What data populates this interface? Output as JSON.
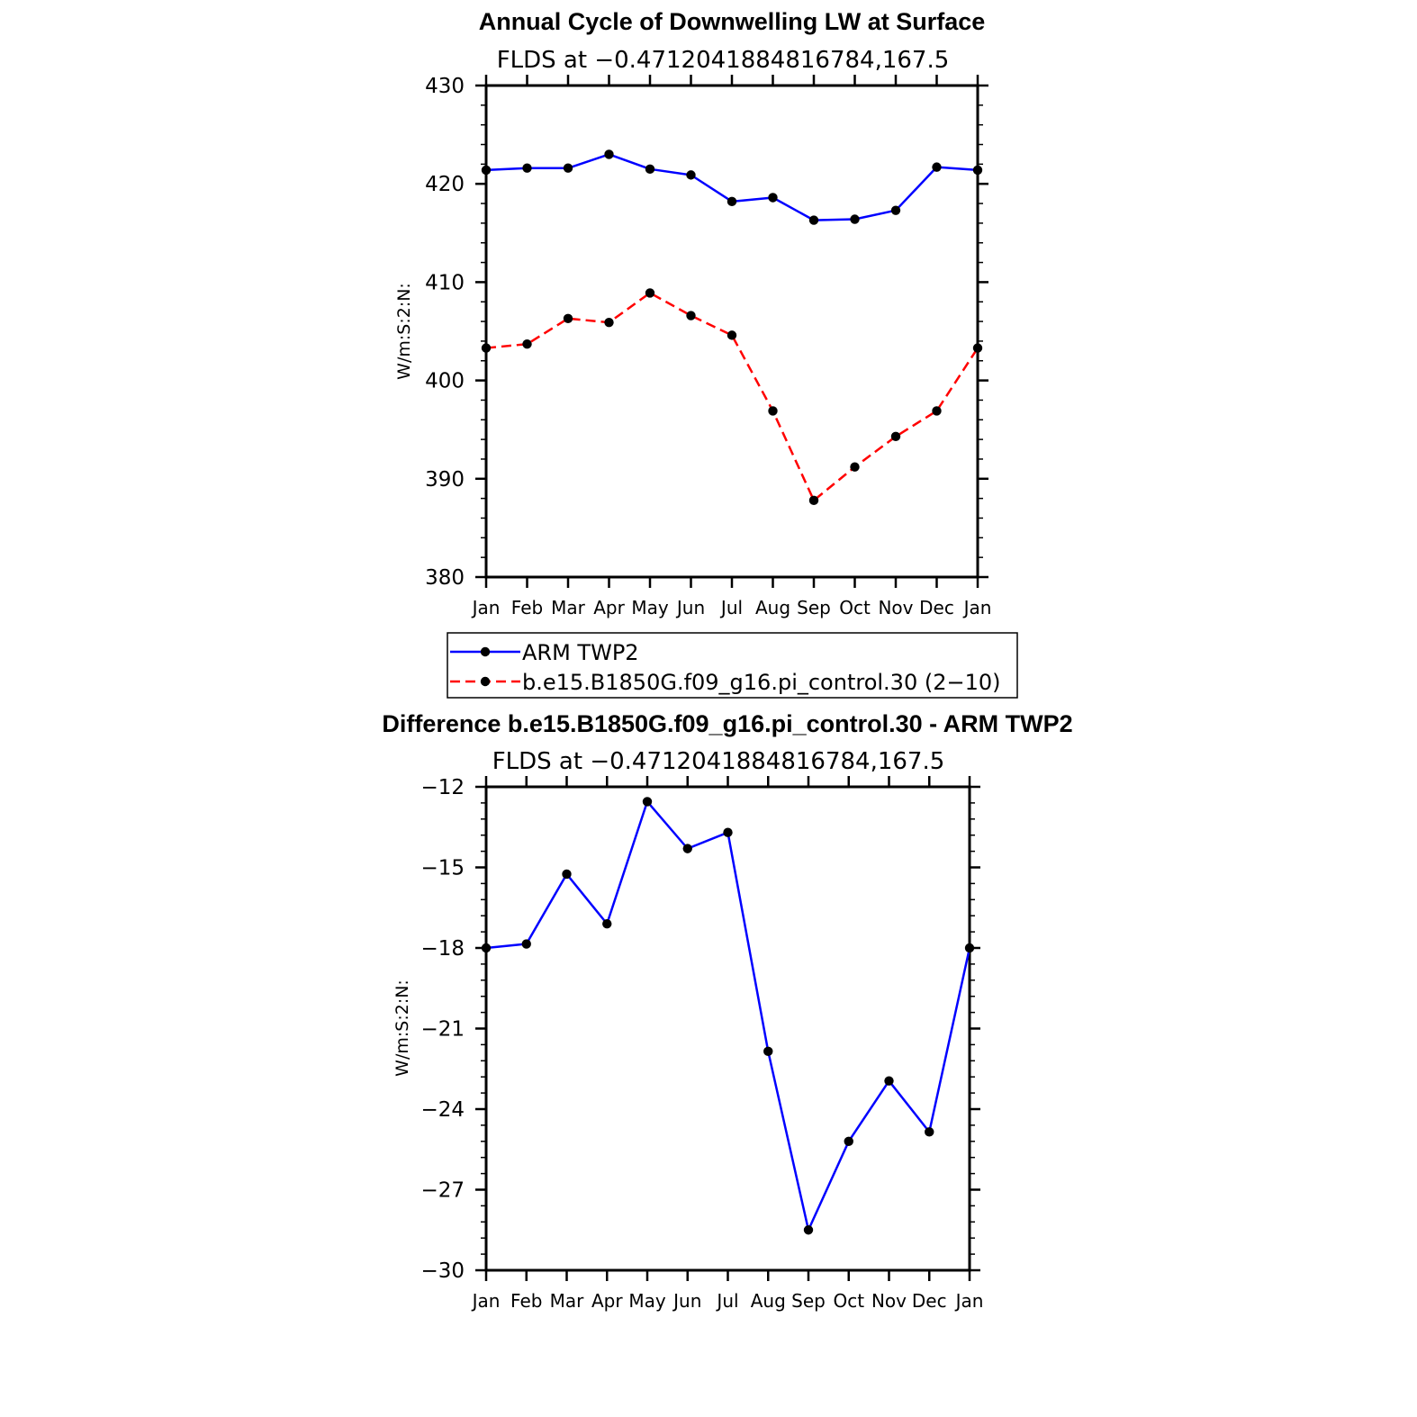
{
  "chart_data": [
    {
      "type": "line",
      "title": "Annual Cycle of Downwelling LW at Surface",
      "subtitle": "FLDS at −0.4712041884816784,167.5",
      "ylabel": "W/m:S:2:N:",
      "xlabel": "",
      "categories": [
        "Jan",
        "Feb",
        "Mar",
        "Apr",
        "May",
        "Jun",
        "Jul",
        "Aug",
        "Sep",
        "Oct",
        "Nov",
        "Dec",
        "Jan"
      ],
      "ylim": [
        380,
        430
      ],
      "yticks": [
        380,
        390,
        400,
        410,
        420,
        430
      ],
      "series": [
        {
          "name": "ARM TWP2",
          "color": "#0000ff",
          "style": "solid",
          "values": [
            421.4,
            421.6,
            421.6,
            423.0,
            421.5,
            420.9,
            418.2,
            418.6,
            416.3,
            416.4,
            417.3,
            421.7,
            421.4
          ]
        },
        {
          "name": "b.e15.B1850G.f09_g16.pi_control.30 (2−10)",
          "color": "#ff0000",
          "style": "dashed",
          "values": [
            403.3,
            403.7,
            406.3,
            405.9,
            408.9,
            406.6,
            404.6,
            396.9,
            387.8,
            391.2,
            394.3,
            396.9,
            403.3
          ]
        }
      ],
      "legend": "below"
    },
    {
      "type": "line",
      "title": "Difference b.e15.B1850G.f09_g16.pi_control.30 - ARM TWP2",
      "subtitle": "FLDS at −0.4712041884816784,167.5",
      "ylabel": "W/m:S:2:N:",
      "xlabel": "",
      "categories": [
        "Jan",
        "Feb",
        "Mar",
        "Apr",
        "May",
        "Jun",
        "Jul",
        "Aug",
        "Sep",
        "Oct",
        "Nov",
        "Dec",
        "Jan"
      ],
      "ylim": [
        -30,
        -12
      ],
      "yticks": [
        -30,
        -27,
        -24,
        -21,
        -18,
        -15,
        -12
      ],
      "series": [
        {
          "color": "#0000ff",
          "style": "solid",
          "values": [
            -18.0,
            -17.85,
            -15.25,
            -17.1,
            -12.55,
            -14.3,
            -13.7,
            -21.85,
            -28.5,
            -25.2,
            -22.95,
            -24.85,
            -18.0
          ]
        }
      ]
    }
  ]
}
